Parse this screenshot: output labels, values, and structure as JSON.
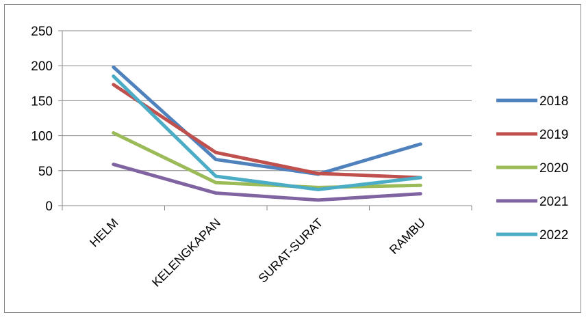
{
  "chart_data": {
    "type": "line",
    "title": "",
    "xlabel": "",
    "ylabel": "",
    "categories": [
      "HELM",
      "KELENGKAPAN",
      "SURAT-SURAT",
      "RAMBU"
    ],
    "ylim": [
      0,
      250
    ],
    "yticks": [
      0,
      50,
      100,
      150,
      200,
      250
    ],
    "grid": "horizontal",
    "legend": "right",
    "series": [
      {
        "name": "2018",
        "color": "#4F81BD",
        "values": [
          198,
          66,
          45,
          88
        ]
      },
      {
        "name": "2019",
        "color": "#C0504D",
        "values": [
          173,
          76,
          46,
          40
        ]
      },
      {
        "name": "2020",
        "color": "#9BBB59",
        "values": [
          104,
          33,
          26,
          29
        ]
      },
      {
        "name": "2021",
        "color": "#8064A2",
        "values": [
          59,
          18,
          8,
          17
        ]
      },
      {
        "name": "2022",
        "color": "#4BACC6",
        "values": [
          185,
          42,
          23,
          40
        ]
      }
    ]
  }
}
